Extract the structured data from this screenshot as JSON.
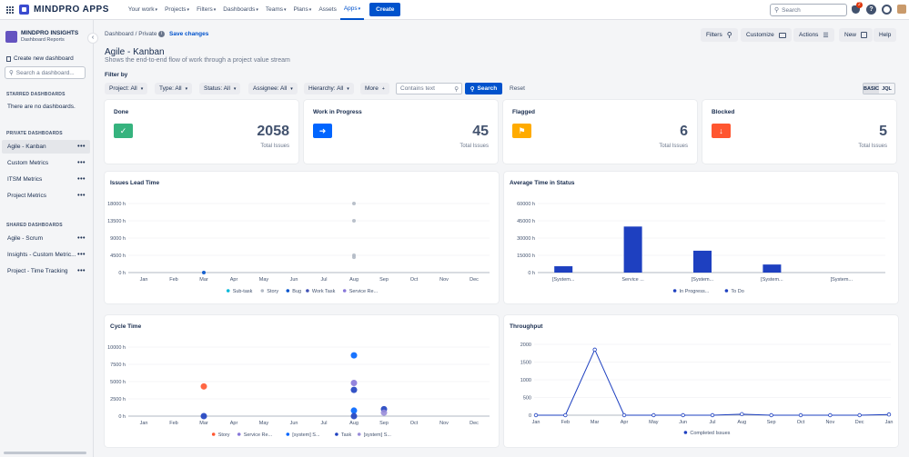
{
  "topnav": {
    "logo_text": "MINDPRO APPS",
    "items": [
      {
        "label": "Your work",
        "caret": "▾"
      },
      {
        "label": "Projects",
        "caret": "▾"
      },
      {
        "label": "Filters",
        "caret": "▾"
      },
      {
        "label": "Dashboards",
        "caret": "▾"
      },
      {
        "label": "Teams",
        "caret": "▾"
      },
      {
        "label": "Plans",
        "caret": "▾"
      },
      {
        "label": "Assets",
        "caret": ""
      },
      {
        "label": "Apps",
        "caret": "▾",
        "active": true
      }
    ],
    "create_label": "Create",
    "search_placeholder": "Search",
    "notification_count": "2",
    "help_glyph": "?"
  },
  "sidebar": {
    "app_name": "MINDPRO INSIGHTS",
    "app_subtitle": "Dashboard Reports",
    "create_label": "Create new dashboard",
    "search_placeholder": "Search a dashboard...",
    "starred_heading": "STARRED DASHBOARDS",
    "starred_empty": "There are no dashboards.",
    "private_heading": "PRIVATE DASHBOARDS",
    "private_items": [
      "Agile - Kanban",
      "Custom Metrics",
      "ITSM Metrics",
      "Project Metrics"
    ],
    "shared_heading": "SHARED DASHBOARDS",
    "shared_items": [
      "Agile - Scrum",
      "Insights - Custom Metric...",
      "Project - Time Tracking"
    ],
    "dots": "•••"
  },
  "header": {
    "breadcrumb": "Dashboard / Private",
    "save_label": "Save changes",
    "title": "Agile - Kanban",
    "subtitle": "Shows the end-to-end flow of work through a project value stream",
    "buttons": {
      "filters": "Filters",
      "customize": "Customize",
      "actions": "Actions",
      "new": "New",
      "help": "Help"
    }
  },
  "filters": {
    "label": "Filter by",
    "dropdowns": [
      "Project: All",
      "Type: All",
      "Status: All",
      "Assignee: All",
      "Hierarchy: All",
      "More"
    ],
    "contains_placeholder": "Contains text",
    "search_label": "Search",
    "reset_label": "Reset",
    "mode_basic": "BASIC",
    "mode_jql": "JQL"
  },
  "kpis": [
    {
      "title": "Done",
      "value": "2058",
      "sub": "Total Issues",
      "color": "#36b37e",
      "icon": "check-icon"
    },
    {
      "title": "Work in Progress",
      "value": "45",
      "sub": "Total Issues",
      "color": "#0065ff",
      "icon": "assign-icon"
    },
    {
      "title": "Flagged",
      "value": "6",
      "sub": "Total Issues",
      "color": "#ffab00",
      "icon": "flag-icon"
    },
    {
      "title": "Blocked",
      "value": "5",
      "sub": "Total Issues",
      "color": "#ff5630",
      "icon": "blocked-icon"
    }
  ],
  "chart_data": [
    {
      "type": "scatter",
      "title": "Issues Lead Time",
      "categories": [
        "Jan",
        "Feb",
        "Mar",
        "Apr",
        "May",
        "Jun",
        "Jul",
        "Aug",
        "Sep",
        "Oct",
        "Nov",
        "Dec"
      ],
      "yticks": [
        "0 h",
        "4500 h",
        "9000 h",
        "13500 h",
        "18000 h"
      ],
      "ylim": [
        0,
        18000
      ],
      "series": [
        {
          "name": "Sub-task",
          "color": "#00b8d9",
          "points": []
        },
        {
          "name": "Story",
          "color": "#b3bac5",
          "points": [
            [
              "Aug",
              18000
            ],
            [
              "Aug",
              13500
            ],
            [
              "Aug",
              4500
            ],
            [
              "Aug",
              4000
            ]
          ]
        },
        {
          "name": "Bug",
          "color": "#0052cc",
          "points": [
            [
              "Mar",
              0
            ]
          ]
        },
        {
          "name": "Work Task",
          "color": "#3f51b5",
          "points": []
        },
        {
          "name": "Service Re...",
          "color": "#8777d9",
          "points": []
        }
      ]
    },
    {
      "type": "bar",
      "title": "Average Time in Status",
      "categories": [
        "[System...",
        "Service ...",
        "[System...",
        "[System...",
        "[System..."
      ],
      "yticks": [
        "0 h",
        "15000 h",
        "30000 h",
        "45000 h",
        "60000 h"
      ],
      "ylim": [
        0,
        60000
      ],
      "series": [
        {
          "name": "In Progress...",
          "color": "#1e40c0",
          "values": [
            5500,
            40000,
            19000,
            7000,
            0
          ]
        },
        {
          "name": "To Do",
          "color": "#1e40c0",
          "values": [
            0,
            0,
            0,
            0,
            0
          ]
        }
      ]
    },
    {
      "type": "scatter",
      "title": "Cycle Time",
      "categories": [
        "Jan",
        "Feb",
        "Mar",
        "Apr",
        "May",
        "Jun",
        "Jul",
        "Aug",
        "Sep",
        "Oct",
        "Nov",
        "Dec"
      ],
      "yticks": [
        "0 h",
        "2500 h",
        "5000 h",
        "7500 h",
        "10000 h"
      ],
      "ylim": [
        0,
        10000
      ],
      "series": [
        {
          "name": "Story",
          "color": "#ff5630",
          "points": [
            [
              "Mar",
              4300
            ]
          ]
        },
        {
          "name": "Service Re...",
          "color": "#8777d9",
          "points": [
            [
              "Aug",
              4800
            ]
          ]
        },
        {
          "name": "[system] S...",
          "color": "#0065ff",
          "points": [
            [
              "Aug",
              8800
            ],
            [
              "Aug",
              800
            ]
          ]
        },
        {
          "name": "Task",
          "color": "#1e40c0",
          "points": [
            [
              "Mar",
              0
            ],
            [
              "Aug",
              3800
            ],
            [
              "Aug",
              0
            ],
            [
              "Sep",
              1000
            ]
          ]
        },
        {
          "name": "[system] S...",
          "color": "#998dd9",
          "points": [
            [
              "Sep",
              500
            ]
          ]
        }
      ]
    },
    {
      "type": "line",
      "title": "Throughput",
      "categories": [
        "Jan",
        "Feb",
        "Mar",
        "Apr",
        "May",
        "Jun",
        "Jul",
        "Aug",
        "Sep",
        "Oct",
        "Nov",
        "Dec",
        "Jan"
      ],
      "yticks": [
        "0",
        "500",
        "1000",
        "1500",
        "2000"
      ],
      "ylim": [
        0,
        2000
      ],
      "series": [
        {
          "name": "Completed Issues",
          "color": "#1e40c0",
          "values": [
            0,
            0,
            1850,
            0,
            0,
            0,
            0,
            30,
            0,
            0,
            0,
            0,
            20
          ]
        }
      ]
    }
  ]
}
